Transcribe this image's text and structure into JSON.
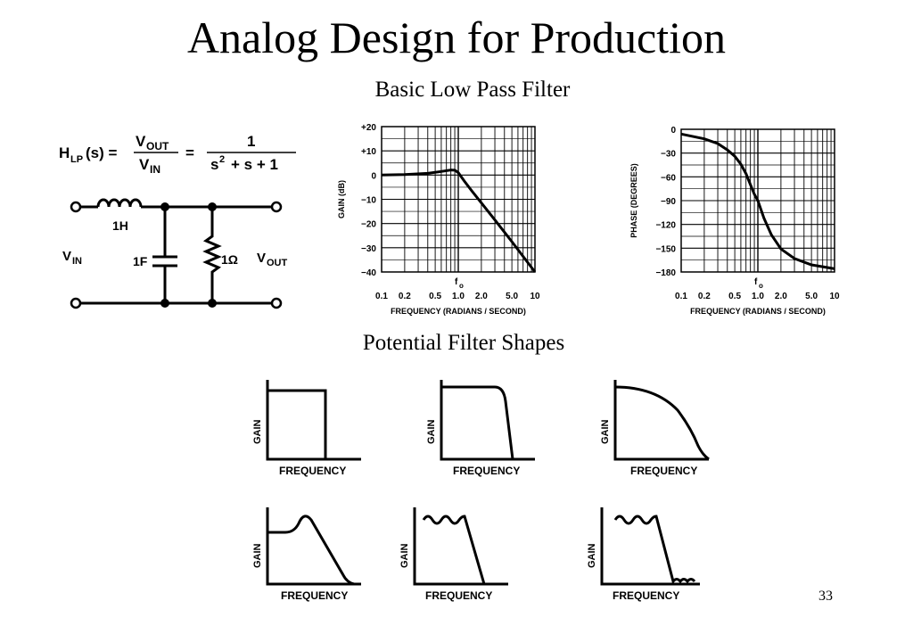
{
  "slide": {
    "title": "Analog Design for Production",
    "subtitle_top": "Basic Low Pass Filter",
    "subtitle_bottom": "Potential Filter Shapes",
    "page_number": "33"
  },
  "formula": {
    "lhs_h": "H",
    "lhs_sub": "LP",
    "lhs_arg": "(s) =",
    "vout_num": "V",
    "vout_sub": "OUT",
    "vin_den": "V",
    "vin_sub": "IN",
    "eq2": "=",
    "rhs_num": "1",
    "rhs_den_s": "s",
    "rhs_den_exp": "2",
    "rhs_den_rest": "+ s + 1"
  },
  "circuit": {
    "inductor_label": "1H",
    "capacitor_label": "1F",
    "resistor_label": "1Ω",
    "vin_label": "V",
    "vin_sub": "IN",
    "vout_label": "V",
    "vout_sub": "OUT"
  },
  "chart_data": [
    {
      "type": "line",
      "name": "gain",
      "xscale": "log",
      "xlim": [
        0.1,
        10
      ],
      "ylim": [
        -40,
        20
      ],
      "ylabel": "GAIN (dB)",
      "xlabel": "FREQUENCY (RADIANS / SECOND)",
      "marker_label": "f",
      "marker_sub": "o",
      "xticks": [
        "0.1",
        "0.2",
        "0.5",
        "1.0",
        "2.0",
        "5.0",
        "10"
      ],
      "xtick_values": [
        0.1,
        0.2,
        0.5,
        1.0,
        2.0,
        5.0,
        10
      ],
      "yticks": [
        "+20",
        "+10",
        "0",
        "−10",
        "−20",
        "−30",
        "−40"
      ],
      "ytick_values": [
        20,
        10,
        0,
        -10,
        -20,
        -30,
        -40
      ],
      "x": [
        0.1,
        0.2,
        0.4,
        0.6,
        0.8,
        0.9,
        1.0,
        1.2,
        1.5,
        2.0,
        3.0,
        5.0,
        10
      ],
      "y": [
        0,
        0.2,
        0.7,
        1.5,
        2.1,
        2.0,
        1.0,
        -2.5,
        -6.5,
        -11.5,
        -18.5,
        -27.5,
        -40
      ]
    },
    {
      "type": "line",
      "name": "phase",
      "xscale": "log",
      "xlim": [
        0.1,
        10
      ],
      "ylim": [
        -180,
        0
      ],
      "ylabel": "PHASE (DEGREES)",
      "xlabel": "FREQUENCY (RADIANS / SECOND)",
      "marker_label": "f",
      "marker_sub": "o",
      "xticks": [
        "0.1",
        "0.2",
        "0.5",
        "1.0",
        "2.0",
        "5.0",
        "10"
      ],
      "xtick_values": [
        0.1,
        0.2,
        0.5,
        1.0,
        2.0,
        5.0,
        10
      ],
      "yticks": [
        "0",
        "−30",
        "−60",
        "−90",
        "−120",
        "−150",
        "−180"
      ],
      "ytick_values": [
        0,
        -30,
        -60,
        -90,
        -120,
        -150,
        -180
      ],
      "x": [
        0.1,
        0.2,
        0.3,
        0.4,
        0.5,
        0.6,
        0.7,
        0.8,
        0.9,
        1.0,
        1.2,
        1.5,
        2.0,
        3.0,
        5.0,
        10
      ],
      "y": [
        -6,
        -12,
        -18,
        -26,
        -34,
        -44,
        -56,
        -70,
        -82,
        -90,
        -112,
        -133,
        -151,
        -163,
        -171,
        -176
      ]
    }
  ],
  "shapes": {
    "gain_label": "GAIN",
    "frequency_label": "FREQUENCY"
  }
}
